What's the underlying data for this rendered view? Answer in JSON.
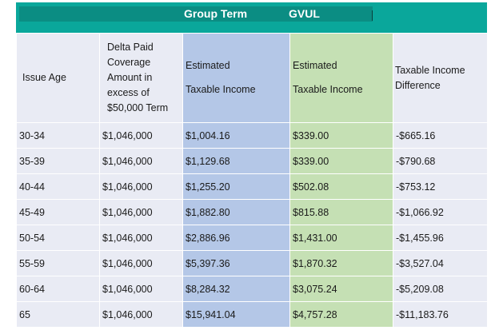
{
  "banner": {
    "group_term": "Group Term",
    "gvul": "GVUL"
  },
  "headers": {
    "issue_age": "Issue Age",
    "delta_paid": "Delta Paid Coverage Amount in excess of $50,000 Term",
    "est_a_line1": "Estimated",
    "est_a_line2": "Taxable Income",
    "est_b_line1": "Estimated",
    "est_b_line2": "Taxable Income",
    "difference": "Taxable Income Difference"
  },
  "rows": [
    {
      "age": "30-34",
      "coverage": "$1,046,000",
      "group_term": "$1,004.16",
      "gvul": "$339.00",
      "difference": "-$665.16"
    },
    {
      "age": "35-39",
      "coverage": "$1,046,000",
      "group_term": "$1,129.68",
      "gvul": "$339.00",
      "difference": "-$790.68"
    },
    {
      "age": "40-44",
      "coverage": "$1,046,000",
      "group_term": "$1,255.20",
      "gvul": "$502.08",
      "difference": "-$753.12"
    },
    {
      "age": "45-49",
      "coverage": "$1,046,000",
      "group_term": "$1,882.80",
      "gvul": "$815.88",
      "difference": "-$1,066.92"
    },
    {
      "age": "50-54",
      "coverage": "$1,046,000",
      "group_term": "$2,886.96",
      "gvul": "$1,431.00",
      "difference": "-$1,455.96"
    },
    {
      "age": "55-59",
      "coverage": "$1,046,000",
      "group_term": "$5,397.36",
      "gvul": "$1,870.32",
      "difference": "-$3,527.04"
    },
    {
      "age": "60-64",
      "coverage": "$1,046,000",
      "group_term": "$8,284.32",
      "gvul": "$3,075.24",
      "difference": "-$5,209.08"
    },
    {
      "age": "65",
      "coverage": "$1,046,000",
      "group_term": "$15,941.04",
      "gvul": "$4,757.28",
      "difference": "-$11,183.76"
    }
  ],
  "colors": {
    "banner": "#0aa79b",
    "banner_inner": "#0b8d83",
    "row_bg": "#e9ebf4",
    "group_term_column": "#b4c7e7",
    "gvul_column": "#c5e0b4"
  }
}
